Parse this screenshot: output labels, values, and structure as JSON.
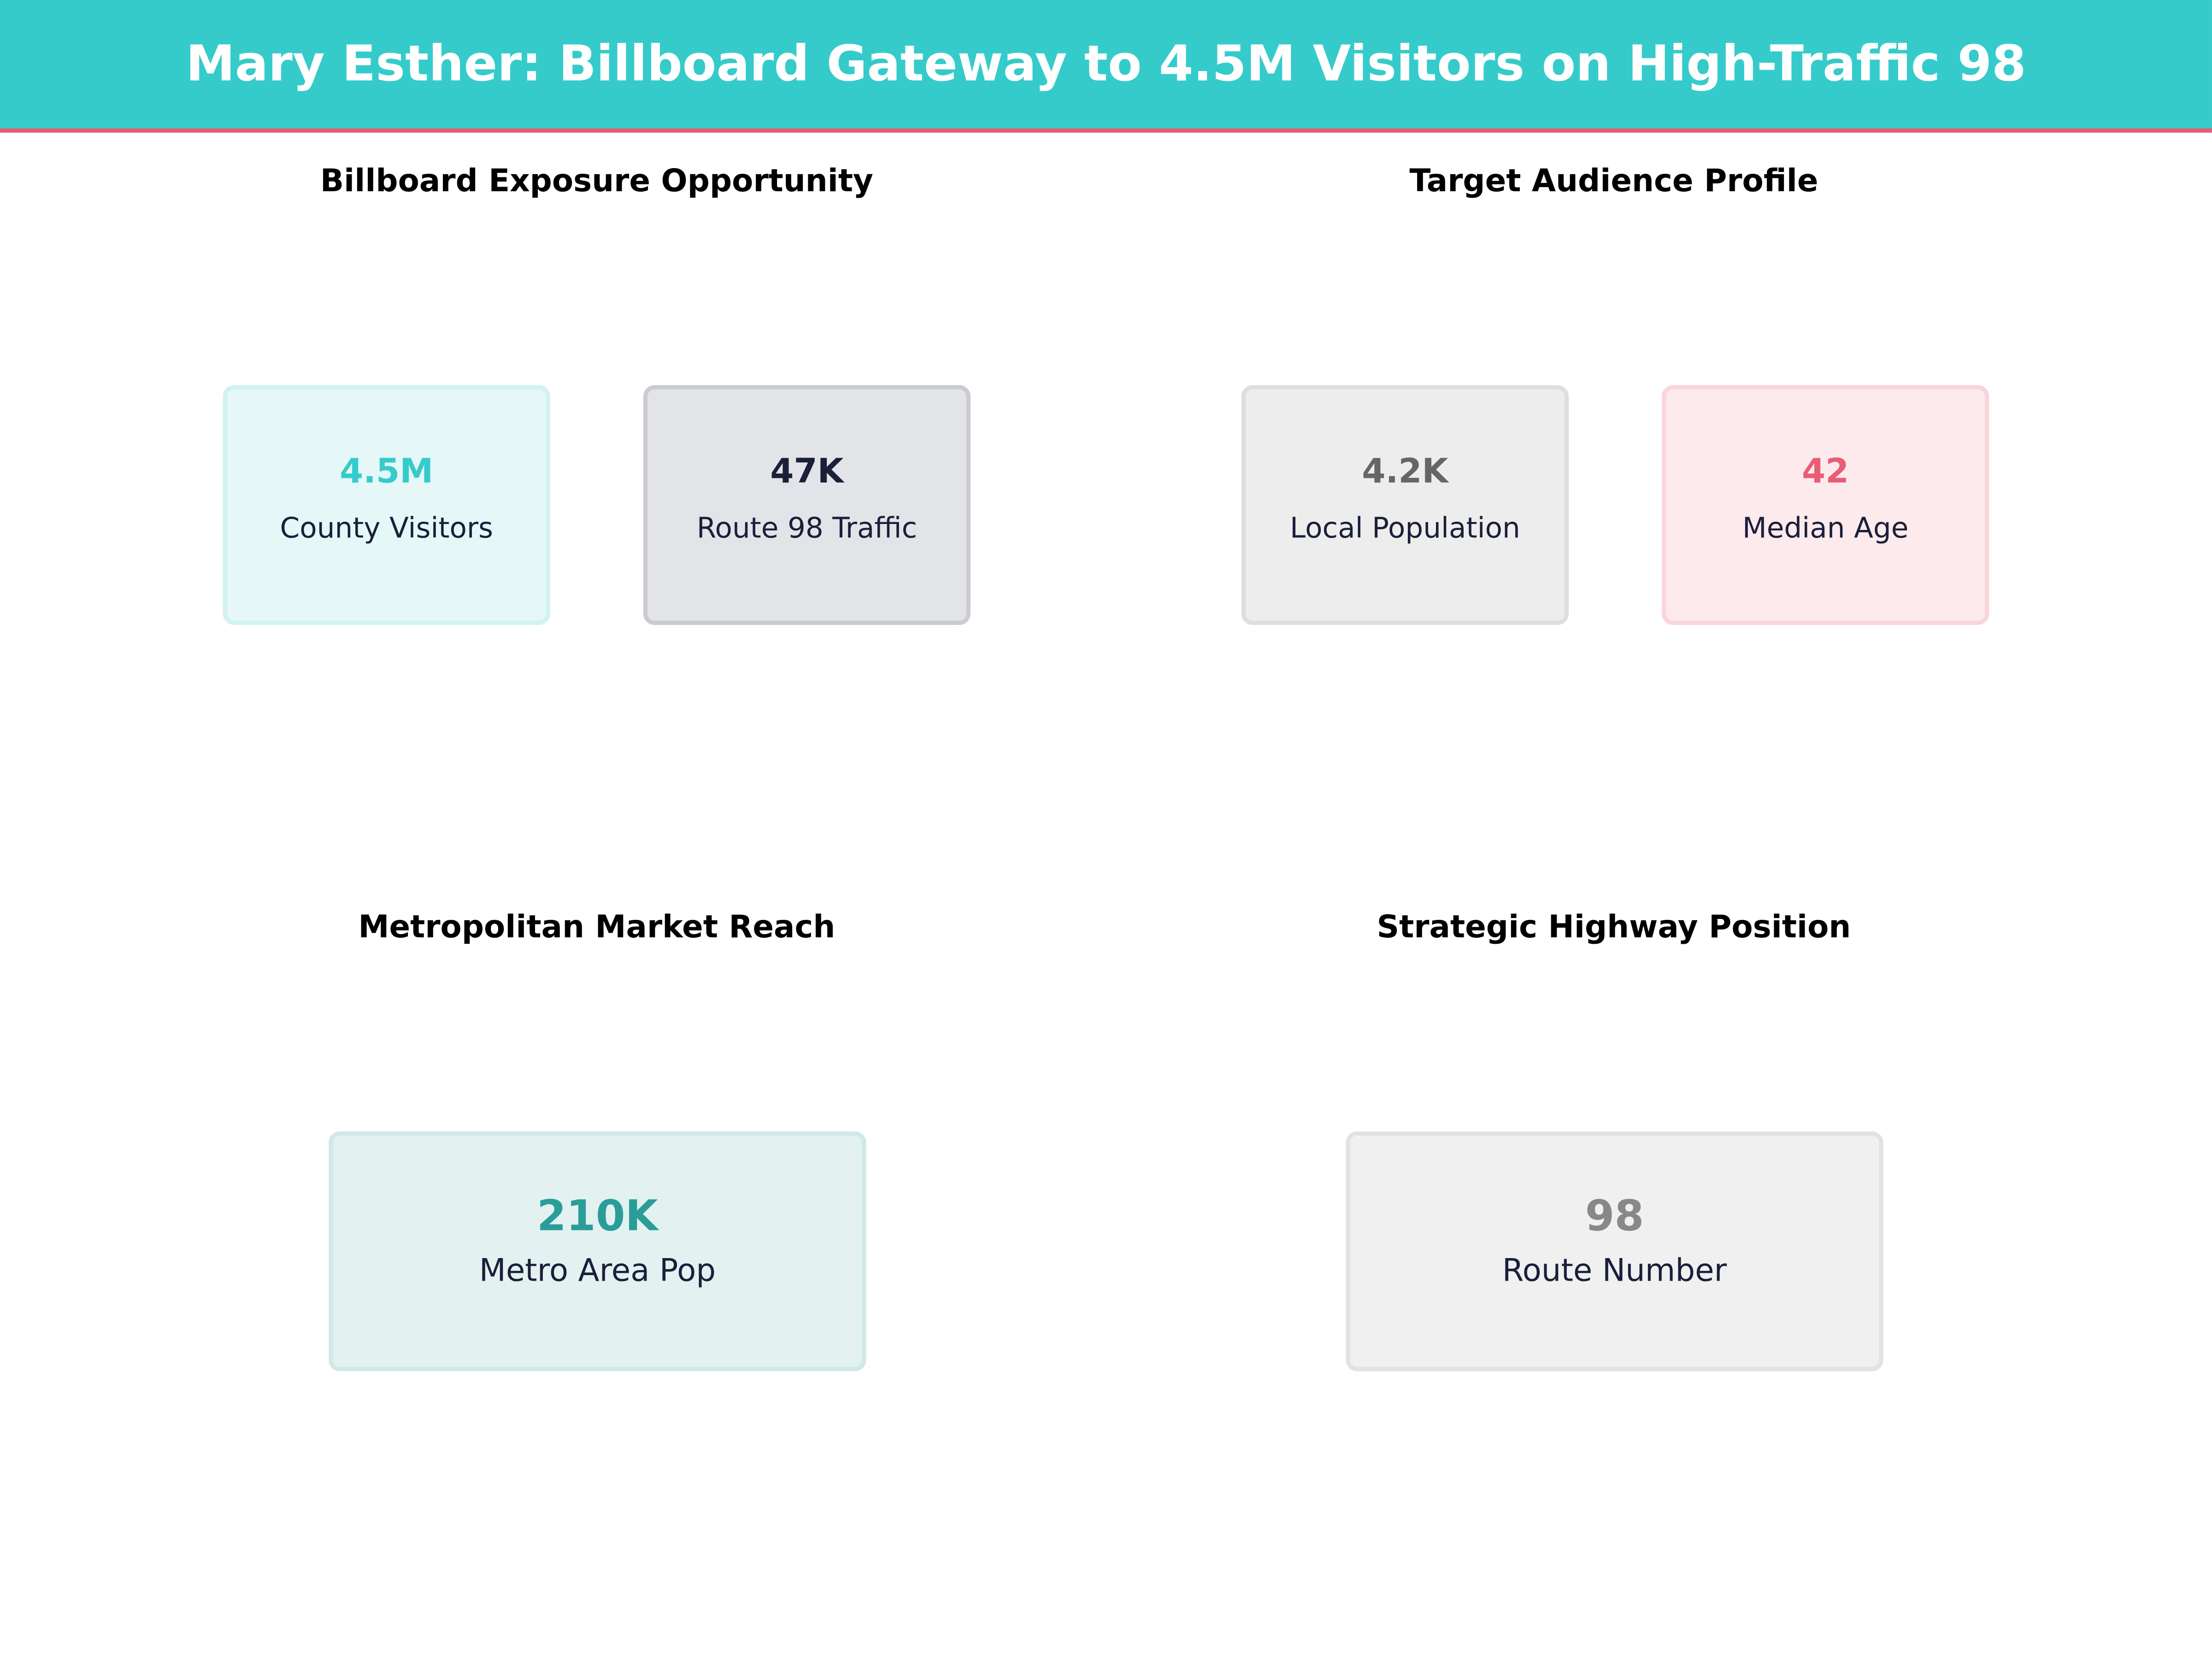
{
  "header": {
    "title": "Mary Esther: Billboard Gateway to 4.5M Visitors on High-Traffic 98"
  },
  "panels": [
    {
      "title": "Billboard Exposure Opportunity",
      "cards": [
        {
          "value": "4.5M",
          "label": "County Visitors",
          "color": "#36CBCB"
        },
        {
          "value": "47K",
          "label": "Route 98 Traffic",
          "color": "#1A1F3A"
        }
      ]
    },
    {
      "title": "Target Audience Profile",
      "cards": [
        {
          "value": "4.2K",
          "label": "Local Population",
          "color": "#666666"
        },
        {
          "value": "42",
          "label": "Median Age",
          "color": "#E85D75"
        }
      ]
    },
    {
      "title": "Metropolitan Market Reach",
      "cards": [
        {
          "value": "210K",
          "label": "Metro Area Pop",
          "color": "#2A9D99"
        }
      ]
    },
    {
      "title": "Strategic Highway Position",
      "cards": [
        {
          "value": "98",
          "label": "Route Number",
          "color": "#888888"
        }
      ]
    }
  ],
  "colors": {
    "header": "#36CBCB",
    "accent": "#E85D75"
  }
}
